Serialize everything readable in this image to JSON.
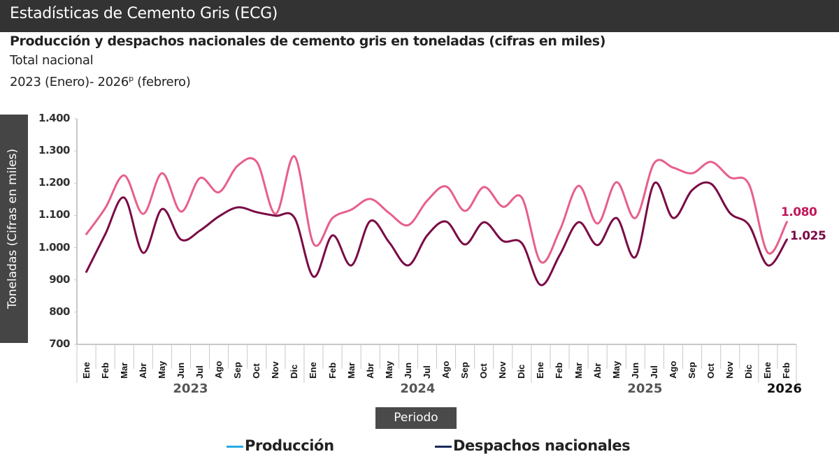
{
  "header": {
    "title": "Estadísticas de Cemento Gris (ECG)"
  },
  "chart_title": "Producción y despachos nacionales de cemento gris en toneladas (cifras en miles)",
  "subtitle_1": "Total nacional",
  "subtitle_2_main": "2023 (Enero)- 2026",
  "subtitle_2_sup": "p",
  "subtitle_2_end": " (febrero)",
  "y_axis_label": "Toneladas (Cifras en miles)",
  "x_axis_label": "Periodo",
  "y_ticks": [
    "1.400",
    "1.300",
    "1.200",
    "1.100",
    "1.000",
    "900",
    "800",
    "700"
  ],
  "years": [
    {
      "label": "2023",
      "start": 0,
      "count": 12
    },
    {
      "label": "2024",
      "start": 12,
      "count": 12
    },
    {
      "label": "2025",
      "start": 24,
      "count": 12
    },
    {
      "label": "2026",
      "start": 36,
      "count": 2
    }
  ],
  "legend": [
    {
      "label": "Producción",
      "color": "#29abe2"
    },
    {
      "label": "Despachos nacionales",
      "color": "#1b2a5c"
    }
  ],
  "end_labels": {
    "produccion": "1.080",
    "despachos": "1.025"
  },
  "colors": {
    "produccion_line": "#e75f8a",
    "despachos_line": "#7a0a45",
    "produccion_label": "#c2185b",
    "despachos_label": "#7a0a45"
  },
  "chart_data": {
    "type": "line",
    "title": "Producción y despachos nacionales de cemento gris en toneladas (cifras en miles)",
    "subtitle": "Total nacional, 2023 (Enero)- 2026p (febrero)",
    "xlabel": "Periodo",
    "ylabel": "Toneladas (Cifras en miles)",
    "ylim": [
      700,
      1400
    ],
    "yticks": [
      700,
      800,
      900,
      1000,
      1100,
      1200,
      1300,
      1400
    ],
    "grid": false,
    "legend_position": "bottom",
    "smooth": true,
    "categories": [
      "Ene",
      "Feb",
      "Mar",
      "Abr",
      "May",
      "Jun",
      "Jul",
      "Ago",
      "Sep",
      "Oct",
      "Nov",
      "Dic",
      "Ene",
      "Feb",
      "Mar",
      "Abr",
      "May",
      "Jun",
      "Jul",
      "Ago",
      "Sep",
      "Oct",
      "Nov",
      "Dic",
      "Ene",
      "Feb",
      "Mar",
      "Abr",
      "May",
      "Jun",
      "Jul",
      "Ago",
      "Sep",
      "Oct",
      "Nov",
      "Dic",
      "Ene",
      "Feb"
    ],
    "category_groups": [
      "2023",
      "2024",
      "2025",
      "2026"
    ],
    "series": [
      {
        "name": "Producción",
        "values": [
          1042,
          1123,
          1224,
          1105,
          1231,
          1112,
          1216,
          1172,
          1255,
          1266,
          1105,
          1283,
          1012,
          1092,
          1118,
          1151,
          1107,
          1070,
          1146,
          1190,
          1114,
          1188,
          1127,
          1155,
          956,
          1053,
          1192,
          1075,
          1203,
          1092,
          1263,
          1248,
          1231,
          1266,
          1218,
          1196,
          984,
          1080
        ]
      },
      {
        "name": "Despachos nacionales",
        "values": [
          925,
          1042,
          1155,
          984,
          1120,
          1025,
          1053,
          1097,
          1125,
          1110,
          1099,
          1092,
          910,
          1038,
          945,
          1083,
          1016,
          945,
          1038,
          1081,
          1010,
          1079,
          1021,
          1014,
          884,
          977,
          1079,
          1008,
          1092,
          971,
          1200,
          1092,
          1179,
          1198,
          1107,
          1070,
          945,
          1025
        ]
      }
    ],
    "annotations": [
      {
        "series": "Producción",
        "x": "Feb 2026",
        "text": "1.080"
      },
      {
        "series": "Despachos nacionales",
        "x": "Feb 2026",
        "text": "1.025"
      }
    ]
  }
}
